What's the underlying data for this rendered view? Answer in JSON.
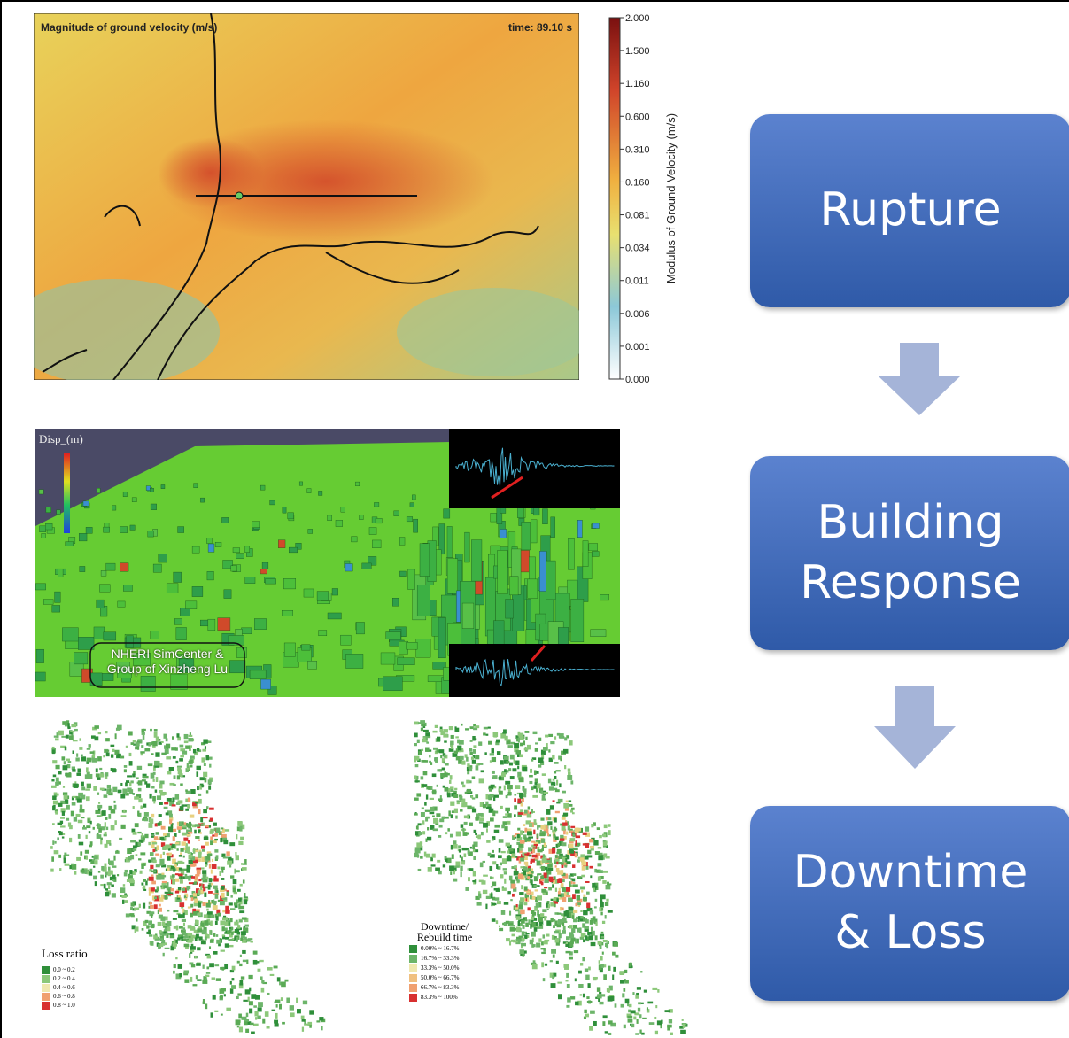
{
  "ground_motion_map": {
    "title": "Magnitude of ground velocity (m/s)",
    "time": "time: 89.10 s",
    "colorbar_label": "Modulus of Ground Velocity (m/s)",
    "colorbar_ticks": [
      "2.000",
      "1.500",
      "1.160",
      "0.600",
      "0.310",
      "0.160",
      "0.081",
      "0.034",
      "0.011",
      "0.006",
      "0.001",
      "0.000"
    ]
  },
  "building_response_view": {
    "legend_title": "Disp_(m)",
    "credit": "NHERI SimCenter & Group of Xinzheng Lu"
  },
  "loss_map": {
    "legend_title": "Loss ratio",
    "legend_entries": [
      "0.0 ~ 0.2",
      "0.2 ~ 0.4",
      "0.4 ~ 0.6",
      "0.6 ~ 0.8",
      "0.8 ~ 1.0"
    ]
  },
  "downtime_map": {
    "legend_title": "Downtime/ Rebuild time",
    "legend_entries": [
      "0.00% ~ 16.7%",
      "16.7% ~ 33.3%",
      "33.3% ~ 50.0%",
      "50.0% ~ 66.7%",
      "66.7% ~ 83.3%",
      "83.3% ~ 100%"
    ]
  },
  "flow": {
    "steps": [
      "Rupture",
      "Building Response",
      "Downtime & Loss"
    ]
  }
}
